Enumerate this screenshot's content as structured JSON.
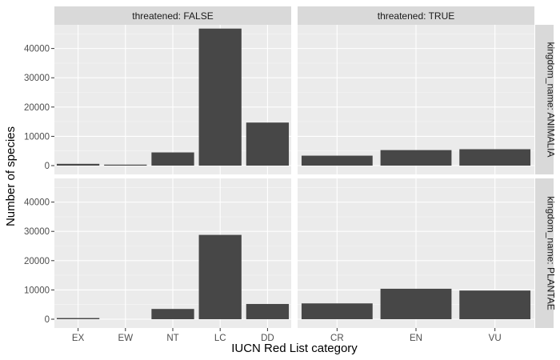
{
  "chart_data": {
    "type": "bar",
    "xlabel": "IUCN Red List category",
    "ylabel": "Number of species",
    "ylim": [
      0,
      47000
    ],
    "yticks": [
      0,
      10000,
      20000,
      30000,
      40000
    ],
    "grid": true,
    "col_facets": [
      "threatened: FALSE",
      "threatened: TRUE"
    ],
    "row_facets": [
      "kingdom_name: ANIMALIA",
      "kingdom_name: PLANTAE"
    ],
    "col_categories": [
      [
        "EX",
        "EW",
        "NT",
        "LC",
        "DD"
      ],
      [
        "CR",
        "EN",
        "VU"
      ]
    ],
    "panels": [
      {
        "row": 0,
        "col": 0,
        "categories": [
          "EX",
          "EW",
          "NT",
          "LC",
          "DD"
        ],
        "values": [
          600,
          300,
          4500,
          46800,
          14700
        ]
      },
      {
        "row": 0,
        "col": 1,
        "categories": [
          "CR",
          "EN",
          "VU"
        ],
        "values": [
          3400,
          5300,
          5600
        ]
      },
      {
        "row": 1,
        "col": 0,
        "categories": [
          "EX",
          "EW",
          "NT",
          "LC",
          "DD"
        ],
        "values": [
          400,
          0,
          3500,
          28800,
          5200
        ]
      },
      {
        "row": 1,
        "col": 1,
        "categories": [
          "CR",
          "EN",
          "VU"
        ],
        "values": [
          5400,
          10400,
          9800
        ]
      }
    ]
  },
  "colors": {
    "bar": "#474747",
    "panel_background": "#ebebeb",
    "strip_background": "#d9d9d9"
  }
}
